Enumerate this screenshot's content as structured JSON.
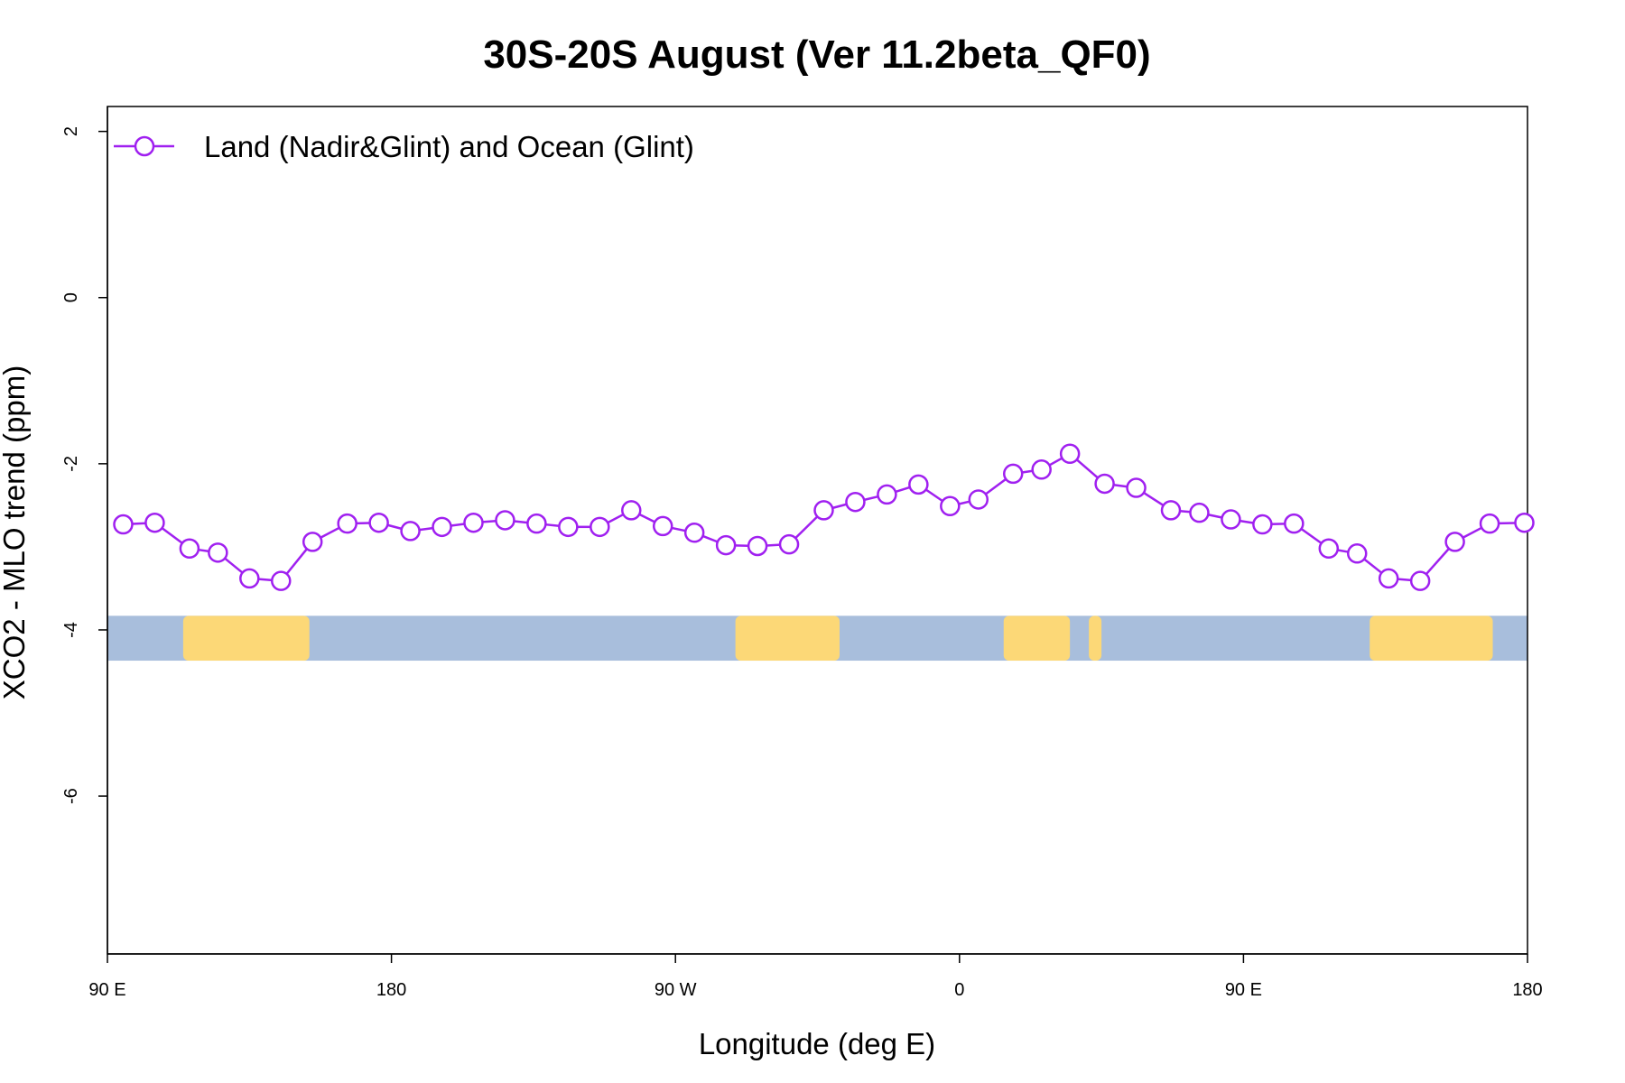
{
  "chart_data": {
    "type": "line",
    "title": "30S-20S August (Ver 11.2beta_QF0)",
    "xlabel": "Longitude (deg E)",
    "ylabel": "XCO2 - MLO trend (ppm)",
    "xlim": [
      90,
      540
    ],
    "ylim": [
      -7.9,
      2.3
    ],
    "x_ticks": [
      {
        "value": 90,
        "label": "90 E"
      },
      {
        "value": 180,
        "label": "180"
      },
      {
        "value": 270,
        "label": "90 W"
      },
      {
        "value": 360,
        "label": "0"
      },
      {
        "value": 450,
        "label": "90 E"
      },
      {
        "value": 540,
        "label": "180"
      }
    ],
    "y_ticks": [
      {
        "value": 2,
        "label": "2"
      },
      {
        "value": 0,
        "label": "0"
      },
      {
        "value": -2,
        "label": "-2"
      },
      {
        "value": -4,
        "label": "-4"
      },
      {
        "value": -6,
        "label": "-6"
      }
    ],
    "legend": {
      "position": "top-left",
      "label": "Land (Nadir&Glint) and Ocean (Glint)"
    },
    "series": [
      {
        "name": "Land (Nadir&Glint) and Ocean (Glint)",
        "color": "#A020F0",
        "x": [
          95,
          105,
          116,
          125,
          135,
          145,
          155,
          166,
          176,
          186,
          196,
          206,
          216,
          226,
          236,
          246,
          256,
          266,
          276,
          286,
          296,
          306,
          317,
          327,
          337,
          347,
          357,
          366,
          377,
          386,
          395,
          406,
          416,
          427,
          436,
          446,
          456,
          466,
          477,
          486,
          496,
          506,
          517,
          528,
          539
        ],
        "values": [
          -2.73,
          -2.71,
          -3.02,
          -3.07,
          -3.38,
          -3.41,
          -2.94,
          -2.72,
          -2.71,
          -2.81,
          -2.76,
          -2.71,
          -2.68,
          -2.72,
          -2.76,
          -2.76,
          -2.56,
          -2.75,
          -2.83,
          -2.98,
          -2.99,
          -2.97,
          -2.56,
          -2.46,
          -2.37,
          -2.25,
          -2.51,
          -2.43,
          -2.12,
          -2.07,
          -1.88,
          -2.24,
          -2.29,
          -2.56,
          -2.59,
          -2.67,
          -2.73,
          -2.72,
          -3.02,
          -3.08,
          -3.38,
          -3.41,
          -2.94,
          -2.72,
          -2.71
        ]
      }
    ],
    "map_strip": {
      "y_top": -3.83,
      "y_bottom": -4.37,
      "ocean_color": "#A8BEDC",
      "land_color": "#FCD877",
      "land_segments": [
        [
          114,
          154
        ],
        [
          289,
          322
        ],
        [
          374,
          395
        ],
        [
          401,
          405
        ],
        [
          490,
          529
        ]
      ]
    }
  }
}
